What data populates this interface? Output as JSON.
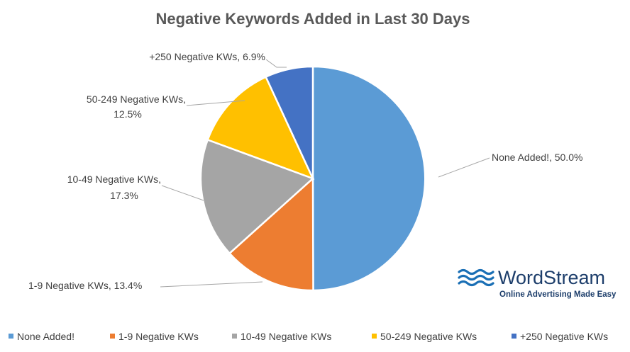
{
  "chart_data": {
    "type": "pie",
    "title": "Negative Keywords Added in Last 30 Days",
    "slices": [
      {
        "name": "None Added!",
        "value": 50.0,
        "label_text": "None Added!, 50.0%",
        "color": "#5b9bd5"
      },
      {
        "name": "1-9 Negative KWs",
        "value": 13.4,
        "label_text": "1-9 Negative KWs, 13.4%",
        "color": "#ed7d31"
      },
      {
        "name": "10-49 Negative KWs",
        "value": 17.3,
        "label_text": "10-49 Negative KWs, 17.3%",
        "color": "#a5a5a5"
      },
      {
        "name": "50-249 Negative KWs",
        "value": 12.5,
        "label_text": "50-249 Negative KWs, 12.5%",
        "color": "#ffc000"
      },
      {
        "name": "+250 Negative KWs",
        "value": 6.9,
        "label_text": "+250 Negative KWs, 6.9%",
        "color": "#4472c4"
      }
    ],
    "legend": {
      "position": "bottom"
    }
  },
  "logo": {
    "name": "WordStream",
    "tagline": "Online Advertising Made Easy",
    "colors": {
      "waves": "#1a6fb5",
      "text": "#1d3e6b"
    }
  }
}
